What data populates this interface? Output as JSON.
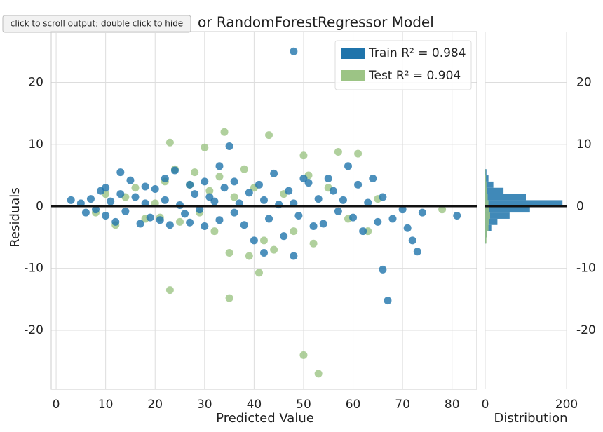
{
  "tooltip": "click to scroll output; double click to hide",
  "chart_data": [
    {
      "type": "scatter",
      "title": "or RandomForestRegressor Model",
      "x_label": "Predicted Value",
      "y_label": "Residuals",
      "xlim": [
        -1,
        85
      ],
      "ylim": [
        -29.5,
        28.2
      ],
      "xticks": [
        0,
        10,
        20,
        30,
        40,
        50,
        60,
        70,
        80
      ],
      "yticks": [
        -20,
        -10,
        0,
        10,
        20
      ],
      "grid": true,
      "legend": "upper right",
      "series": [
        {
          "name": "Train R² = 0.984",
          "color": "#1f74ab",
          "x": [
            3,
            5,
            6,
            7,
            8,
            9,
            10,
            10,
            11,
            12,
            13,
            13,
            14,
            15,
            16,
            17,
            18,
            18,
            19,
            20,
            21,
            22,
            22,
            23,
            24,
            25,
            26,
            27,
            27,
            28,
            29,
            30,
            30,
            31,
            32,
            33,
            33,
            34,
            35,
            36,
            36,
            37,
            38,
            39,
            40,
            41,
            42,
            42,
            43,
            44,
            45,
            46,
            47,
            48,
            48,
            48,
            49,
            50,
            51,
            52,
            53,
            54,
            55,
            56,
            57,
            58,
            59,
            60,
            61,
            62,
            63,
            64,
            65,
            66,
            66,
            67,
            68,
            70,
            71,
            72,
            73,
            74,
            81
          ],
          "values": [
            1,
            0.5,
            -1,
            1.2,
            -0.5,
            2.5,
            -1.5,
            3,
            0.8,
            -2.5,
            5.5,
            2,
            -0.8,
            4.2,
            1.5,
            -2.8,
            0.5,
            3.2,
            -1.8,
            2.8,
            -2.2,
            1,
            4.5,
            -3,
            5.8,
            0.2,
            -1.2,
            3.5,
            -2.6,
            2,
            -0.5,
            4,
            -3.2,
            1.5,
            0.8,
            -2.2,
            6.5,
            3,
            9.7,
            -1,
            4,
            0.5,
            -3,
            2.2,
            -5.5,
            3.5,
            -7.5,
            1,
            -2,
            5.3,
            0.3,
            -4.8,
            2.5,
            25,
            -8,
            0.5,
            -1.5,
            4.5,
            3.8,
            -3.2,
            1.2,
            -2.8,
            4.5,
            2.5,
            -0.8,
            1,
            6.5,
            -1.8,
            3.5,
            -4,
            0.6,
            4.5,
            -2.5,
            -10.2,
            1.5,
            -15.2,
            -2,
            -0.5,
            -3.5,
            -5.5,
            -7.3,
            -1,
            -1.5
          ]
        },
        {
          "name": "Test R² = 0.904",
          "color": "#9cc485",
          "x": [
            8,
            10,
            12,
            14,
            16,
            18,
            20,
            21,
            22,
            23,
            23,
            24,
            25,
            27,
            28,
            29,
            30,
            31,
            32,
            33,
            34,
            35,
            35,
            36,
            38,
            39,
            40,
            41,
            42,
            43,
            44,
            46,
            48,
            50,
            50,
            51,
            52,
            53,
            55,
            57,
            59,
            61,
            63,
            65,
            78
          ],
          "values": [
            -1,
            2,
            -3,
            1.5,
            3,
            -2,
            0.5,
            -1.8,
            4,
            10.3,
            -13.5,
            6,
            -2.5,
            3.5,
            5.5,
            -1,
            9.5,
            2.5,
            -4,
            4.8,
            12,
            -14.8,
            -7.5,
            1.5,
            6,
            -8,
            3,
            -10.7,
            -5.5,
            11.5,
            -7,
            2,
            -4,
            8.2,
            -24,
            5,
            -6,
            -27,
            3,
            8.8,
            -2,
            8.5,
            -4,
            1.2,
            -0.5
          ]
        }
      ]
    },
    {
      "type": "histogram",
      "x_label": "Distribution",
      "orientation": "horizontal",
      "xlim": [
        0,
        200
      ],
      "xticks": [
        0,
        200
      ],
      "ylim": [
        -29.5,
        28.2
      ],
      "yticks": [
        -20,
        -10,
        0,
        10,
        20
      ],
      "bins": [
        -6,
        -5,
        -4,
        -3,
        -2,
        -1,
        0,
        1,
        2,
        3,
        4,
        5,
        6
      ],
      "series": [
        {
          "name": "Train",
          "color": "#1f74ab",
          "values": [
            2,
            5,
            15,
            30,
            60,
            110,
            190,
            100,
            45,
            20,
            8,
            3
          ]
        },
        {
          "name": "Test",
          "color": "#9cc485",
          "values": [
            3,
            5,
            8,
            10,
            12,
            10,
            8,
            6,
            4,
            3,
            2,
            1
          ]
        }
      ]
    }
  ]
}
